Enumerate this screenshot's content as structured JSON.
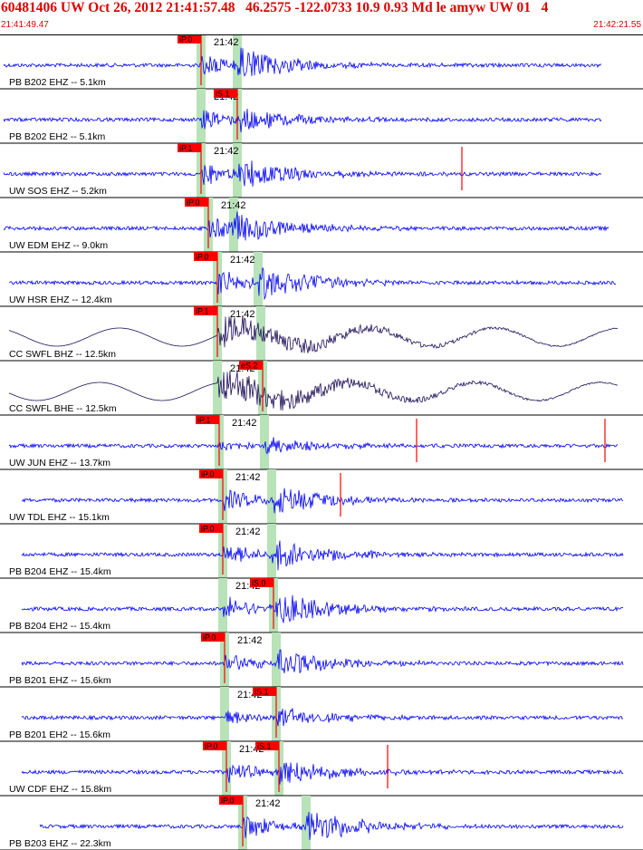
{
  "header": {
    "title": "60481406 UW Oct 26, 2012 21:41:57.48   46.2575 -122.0733 10.9 0.93 Md le amyw UW 01   4",
    "start_time": "21:41:49.47",
    "end_time": "21:42:21.55"
  },
  "colors": {
    "header_text": "#e00000",
    "trace_blue": "#0000ff",
    "trace_dark": "#20105a",
    "pick_red": "#ff0000",
    "synth_band": "#b8e2b8",
    "divider": "#000000"
  },
  "minute_label": "21:42",
  "traces": [
    {
      "label": "PB B202 EHZ -- 5.1km",
      "picks": [
        "iP.0"
      ],
      "dark": false
    },
    {
      "label": "PB B202 EH2 -- 5.1km",
      "picks": [
        "iS.1"
      ],
      "dark": false
    },
    {
      "label": "UW SOS EHZ -- 5.2km",
      "picks": [
        "iP.1"
      ],
      "dark": false
    },
    {
      "label": "UW EDM EHZ -- 9.0km",
      "picks": [
        "iP.0"
      ],
      "dark": false
    },
    {
      "label": "UW HSR EHZ -- 12.4km",
      "picks": [
        "iP.0"
      ],
      "dark": false
    },
    {
      "label": "CC SWFL BHZ -- 12.5km",
      "picks": [
        "iP.1"
      ],
      "dark": true
    },
    {
      "label": "CC SWFL BHE -- 12.5km",
      "picks": [
        "eS.2"
      ],
      "dark": true
    },
    {
      "label": "UW JUN EHZ -- 13.7km",
      "picks": [
        "iP.1"
      ],
      "dark": false
    },
    {
      "label": "UW TDL EHZ -- 15.1km",
      "picks": [
        "iP.0"
      ],
      "dark": false
    },
    {
      "label": "PB B204 EHZ -- 15.4km",
      "picks": [
        "iP.0"
      ],
      "dark": false
    },
    {
      "label": "PB B204 EH2 -- 15.4km",
      "picks": [
        "iS.0"
      ],
      "dark": false
    },
    {
      "label": "PB B201 EHZ -- 15.6km",
      "picks": [
        "iP.0"
      ],
      "dark": false
    },
    {
      "label": "PB B201 EH2 -- 15.6km",
      "picks": [
        "iS.1"
      ],
      "dark": false
    },
    {
      "label": "UW CDF EHZ -- 15.8km",
      "picks": [
        "iP.0",
        "iS.1"
      ],
      "dark": false
    },
    {
      "label": "PB B203 EHZ -- 22.3km",
      "picks": [
        "iP.0"
      ],
      "dark": false
    }
  ]
}
